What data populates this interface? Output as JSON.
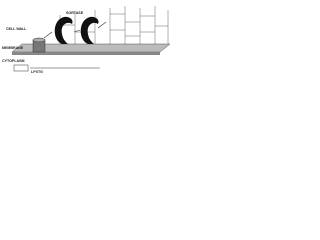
{
  "labels": {
    "cell_wall": "CELL WALL",
    "membrane": "MEMBRANE",
    "cytoplasm": "CYTOPLASM",
    "sortase": "SORTASE",
    "motif": "LPXTG"
  }
}
